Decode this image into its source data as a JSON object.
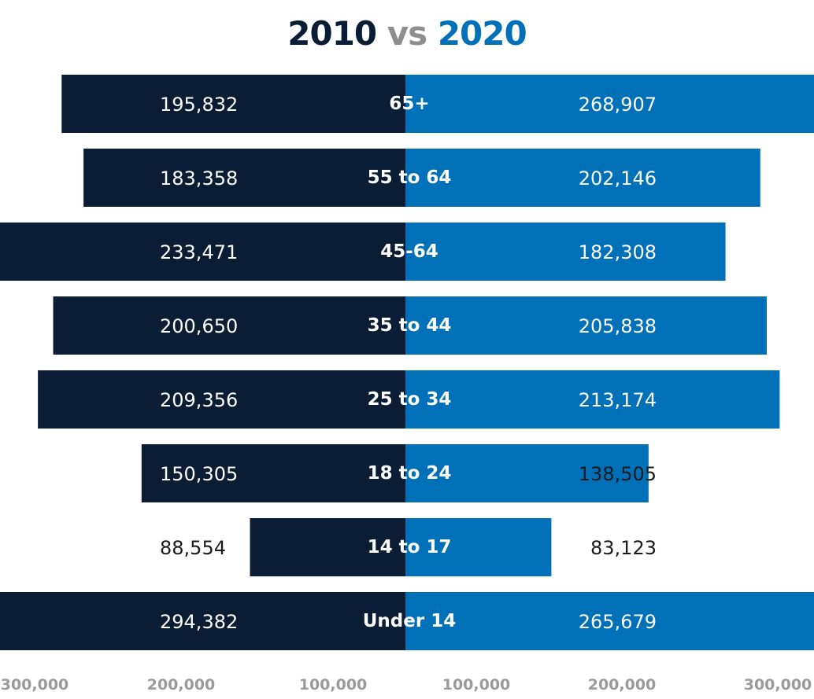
{
  "title": {
    "left": "2010",
    "middle": "vs",
    "right": "2020"
  },
  "colors": {
    "left_bar": "#0b1c35",
    "right_bar": "#0070b8",
    "axis_tick": "#9a9a9a",
    "label_on_bar": "#ffffff",
    "label_off_bar": "#1a1a1a"
  },
  "chart_data": {
    "type": "bar",
    "orientation": "horizontal-diverging",
    "categories": [
      "65+",
      "55 to 64",
      "45-64",
      "35 to 44",
      "25 to 34",
      "18 to 24",
      "14 to 17",
      "Under 14"
    ],
    "series": [
      {
        "name": "2010",
        "values": [
          195832,
          183358,
          233471,
          200650,
          209356,
          150305,
          88554,
          294382
        ]
      },
      {
        "name": "2020",
        "values": [
          268907,
          202146,
          182308,
          205838,
          213174,
          138505,
          83123,
          265679
        ]
      }
    ],
    "value_labels": {
      "2010": [
        "195,832",
        "183,358",
        "233,471",
        "200,650",
        "209,356",
        "150,305",
        "88,554",
        "294,382"
      ],
      "2020": [
        "268,907",
        "202,146",
        "182,308",
        "205,838",
        "213,174",
        "138,505",
        "83,123",
        "265,679"
      ]
    },
    "x_ticks_left": [
      "300,000",
      "200,000",
      "100,000"
    ],
    "x_ticks_right": [
      "100,000",
      "200,000",
      "300,000"
    ],
    "xlim": [
      0,
      300000
    ],
    "grid": false,
    "legend": "title"
  }
}
